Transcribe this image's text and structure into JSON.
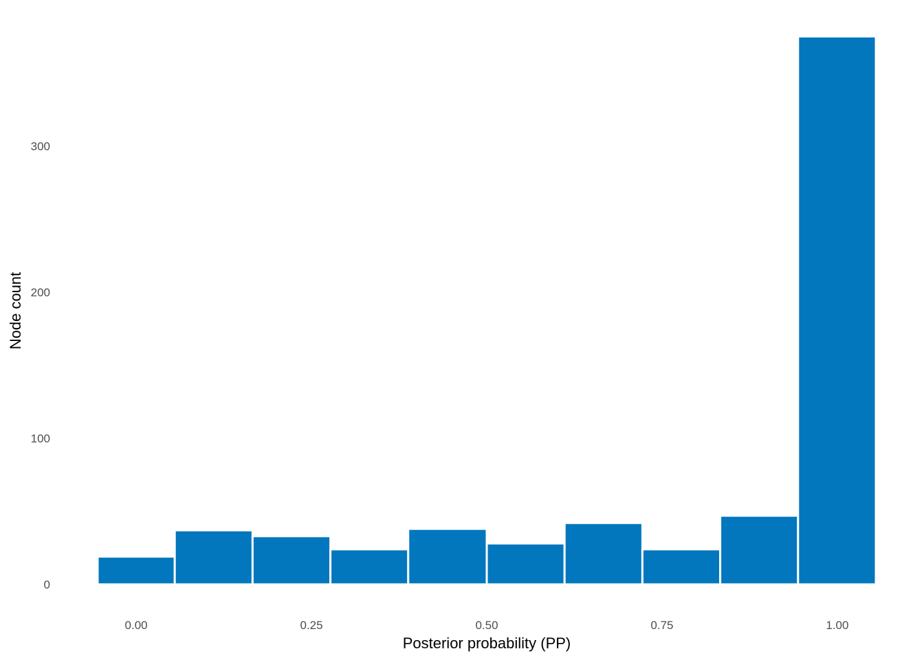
{
  "chart_data": {
    "type": "bar",
    "title": "",
    "xlabel": "Posterior probability (PP)",
    "ylabel": "Node count",
    "bins": [
      {
        "x0": -0.055,
        "x1": 0.055,
        "count": 19
      },
      {
        "x0": 0.055,
        "x1": 0.166,
        "count": 37
      },
      {
        "x0": 0.166,
        "x1": 0.277,
        "count": 33
      },
      {
        "x0": 0.277,
        "x1": 0.388,
        "count": 24
      },
      {
        "x0": 0.388,
        "x1": 0.5,
        "count": 38
      },
      {
        "x0": 0.5,
        "x1": 0.611,
        "count": 28
      },
      {
        "x0": 0.611,
        "x1": 0.722,
        "count": 42
      },
      {
        "x0": 0.722,
        "x1": 0.833,
        "count": 24
      },
      {
        "x0": 0.833,
        "x1": 0.944,
        "count": 47
      },
      {
        "x0": 0.944,
        "x1": 1.055,
        "count": 375
      }
    ],
    "xlim": [
      -0.055,
      1.055
    ],
    "ylim": [
      0,
      375
    ],
    "x_ticks": [
      {
        "value": 0.0,
        "label": "0.00"
      },
      {
        "value": 0.25,
        "label": "0.25"
      },
      {
        "value": 0.5,
        "label": "0.50"
      },
      {
        "value": 0.75,
        "label": "0.75"
      },
      {
        "value": 1.0,
        "label": "1.00"
      }
    ],
    "y_ticks": [
      {
        "value": 0,
        "label": "0"
      },
      {
        "value": 100,
        "label": "100"
      },
      {
        "value": 200,
        "label": "200"
      },
      {
        "value": 300,
        "label": "300"
      }
    ],
    "grid": false,
    "legend": "none",
    "colors": {
      "bar_fill": "#0277BD",
      "bar_outline": "#FFFFFF"
    }
  }
}
